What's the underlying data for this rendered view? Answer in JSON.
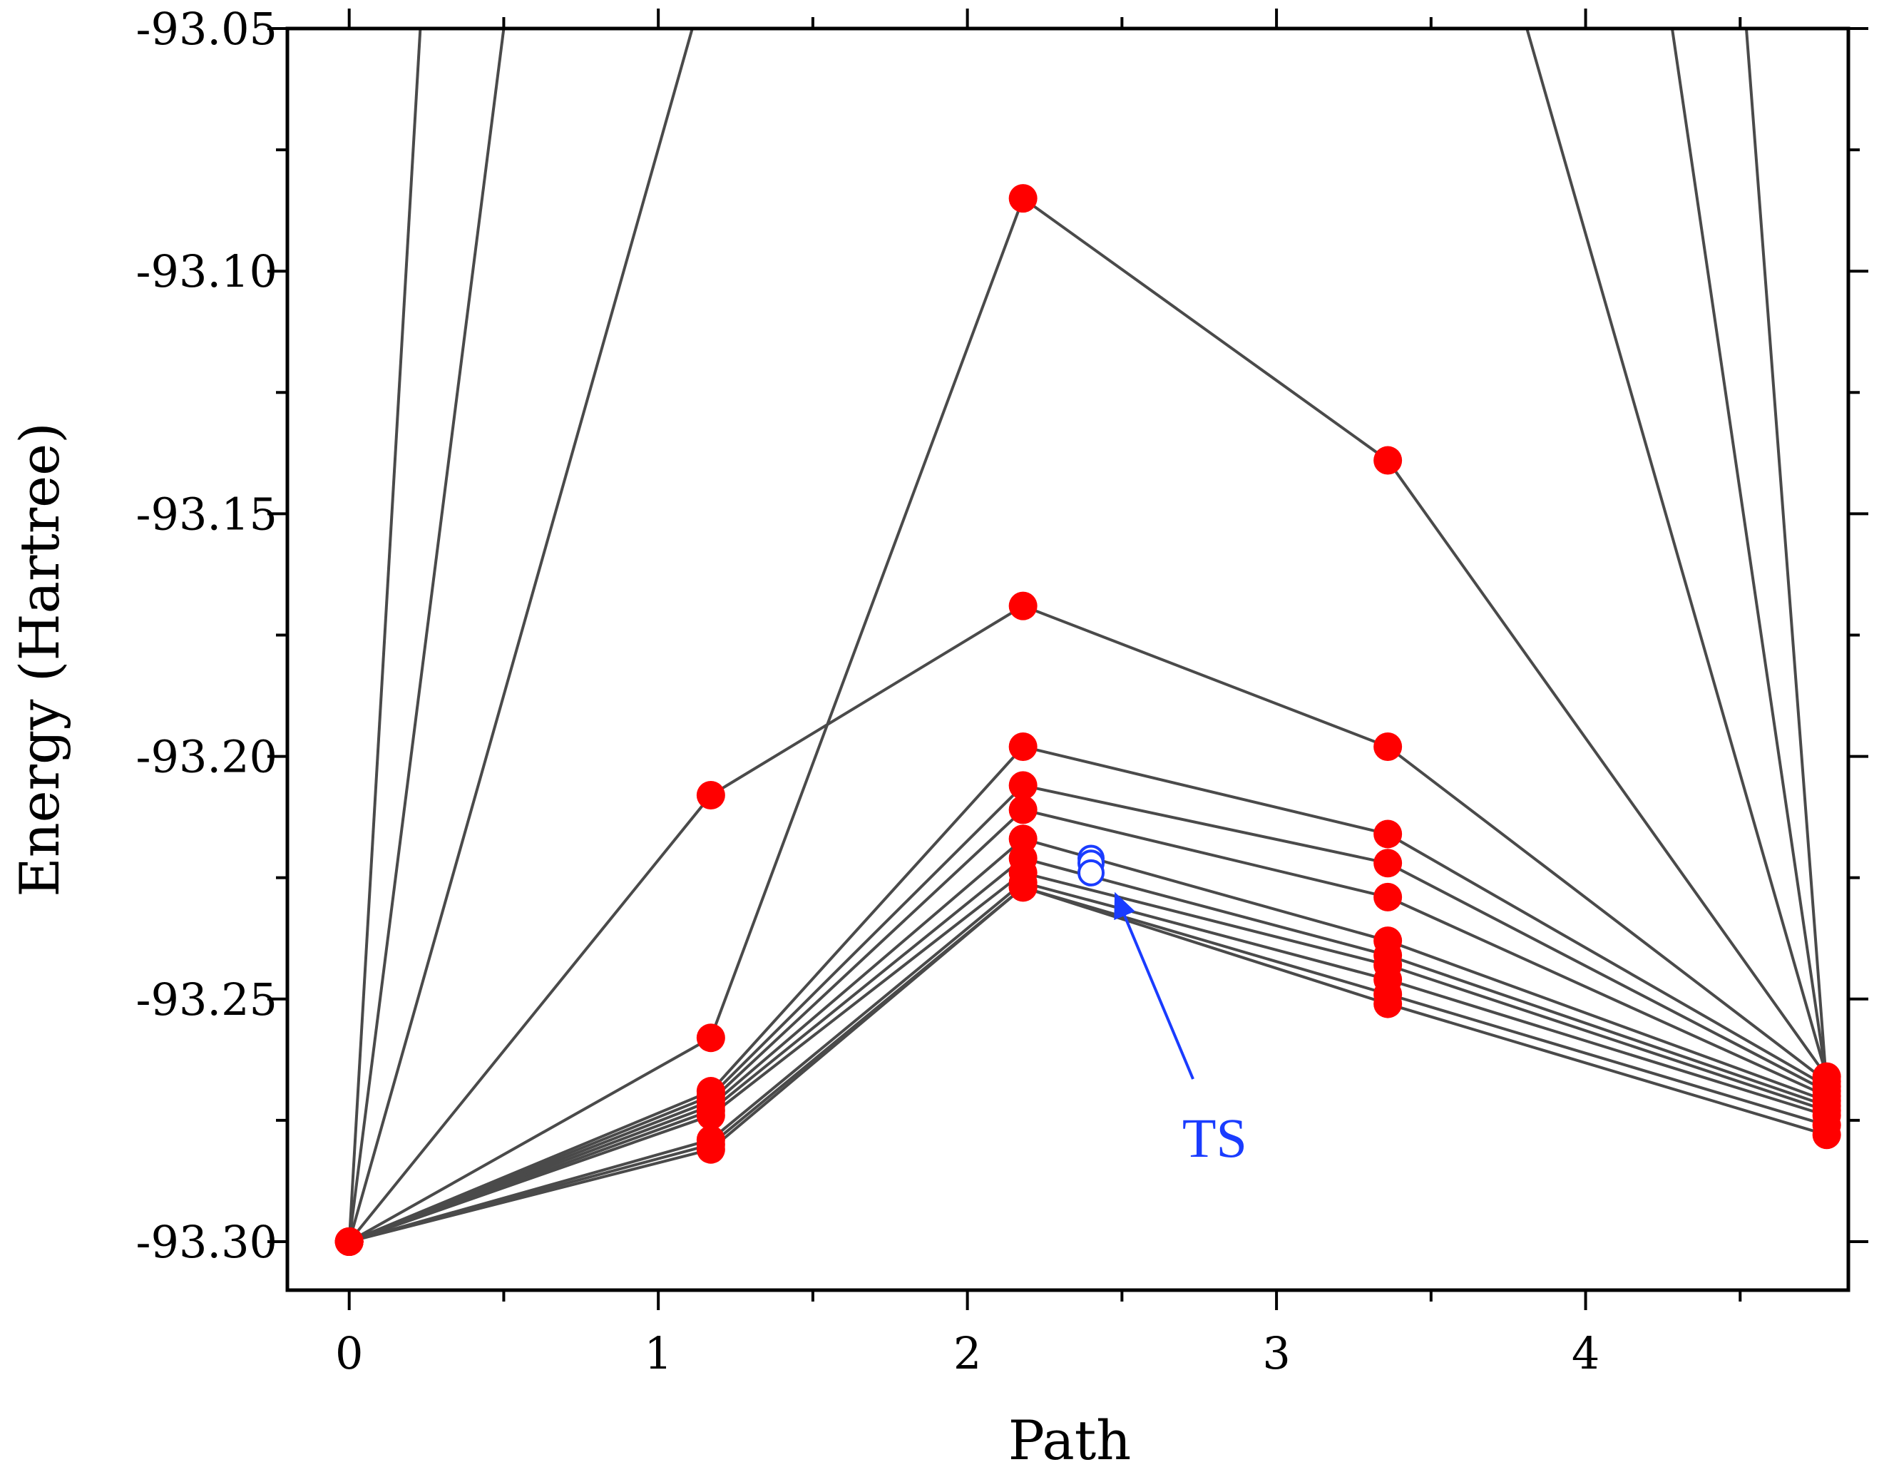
{
  "chart_data": {
    "type": "line",
    "title": "",
    "xlabel": "Path",
    "ylabel": "Energy (Hartree)",
    "xlim": [
      -0.2,
      4.85
    ],
    "ylim": [
      -93.31,
      -93.05
    ],
    "xticks": [
      0,
      1,
      2,
      3,
      4
    ],
    "xtick_labels": [
      "0",
      "1",
      "2",
      "3",
      "4"
    ],
    "yticks": [
      -93.3,
      -93.25,
      -93.2,
      -93.15,
      -93.1,
      -93.05
    ],
    "ytick_labels": [
      "-93.30",
      "-93.25",
      "-93.20",
      "-93.15",
      "-93.10",
      "-93.05"
    ],
    "grid": false,
    "line_color": "#4a4a4a",
    "marker_color": "#ff0000",
    "ts_color": "#1a3cff",
    "path_x": [
      0,
      1.17,
      2.18,
      3.36,
      4.78
    ],
    "series": [
      {
        "values": [
          -93.3,
          -93.258,
          -93.085,
          -93.139,
          -93.266
        ]
      },
      {
        "values": [
          -93.3,
          -93.208,
          -93.169,
          -93.198,
          -93.267
        ]
      },
      {
        "values": [
          -93.3,
          -93.269,
          -93.198,
          -93.216,
          -93.268
        ]
      },
      {
        "values": [
          -93.3,
          -93.27,
          -93.206,
          -93.222,
          -93.269
        ]
      },
      {
        "values": [
          -93.3,
          -93.271,
          -93.211,
          -93.229,
          -93.27
        ]
      },
      {
        "values": [
          -93.3,
          -93.272,
          -93.217,
          -93.238,
          -93.271
        ]
      },
      {
        "values": [
          -93.3,
          -93.273,
          -93.221,
          -93.241,
          -93.272
        ]
      },
      {
        "values": [
          -93.3,
          -93.274,
          -93.224,
          -93.243,
          -93.273
        ]
      },
      {
        "values": [
          -93.3,
          -93.279,
          -93.226,
          -93.246,
          -93.274
        ]
      },
      {
        "values": [
          -93.3,
          -93.28,
          -93.227,
          -93.249,
          -93.276
        ]
      },
      {
        "values": [
          -93.3,
          -93.281,
          -93.227,
          -93.251,
          -93.278
        ]
      }
    ],
    "steep_lines": [
      {
        "x": [
          0,
          0.23
        ],
        "y": [
          -93.3,
          -93.05
        ]
      },
      {
        "x": [
          0,
          0.5
        ],
        "y": [
          -93.3,
          -93.05
        ]
      },
      {
        "x": [
          0,
          1.11
        ],
        "y": [
          -93.3,
          -93.05
        ]
      },
      {
        "x": [
          4.78,
          3.81
        ],
        "y": [
          -93.266,
          -93.05
        ]
      },
      {
        "x": [
          4.78,
          4.28
        ],
        "y": [
          -93.267,
          -93.05
        ]
      },
      {
        "x": [
          4.78,
          4.52
        ],
        "y": [
          -93.268,
          -93.05
        ]
      }
    ],
    "ts_points": [
      {
        "x": 2.4,
        "y": -93.221
      },
      {
        "x": 2.4,
        "y": -93.222
      },
      {
        "x": 2.4,
        "y": -93.224
      }
    ],
    "annotation": {
      "text": "TS",
      "arrow_tail": {
        "x": 2.73,
        "y": -93.2665
      },
      "arrow_head": {
        "x": 2.48,
        "y": -93.2285
      },
      "label_pos": {
        "x": 2.8,
        "y": -93.2825
      }
    }
  }
}
